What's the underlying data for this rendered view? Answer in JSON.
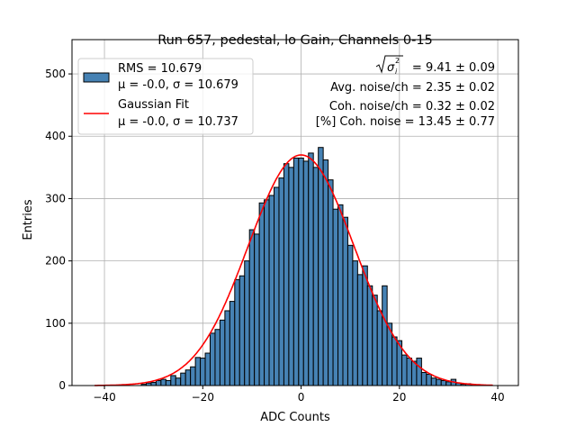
{
  "chart_data": {
    "type": "bar",
    "title": "Run 657, pedestal, lo Gain, Channels 0-15",
    "xlabel": "ADC Counts",
    "ylabel": "Entries",
    "xlim": [
      -46.6,
      44.2
    ],
    "ylim": [
      0,
      555
    ],
    "xticks": [
      -40,
      -20,
      0,
      20,
      40
    ],
    "yticks": [
      0,
      100,
      200,
      300,
      400,
      500
    ],
    "grid": true,
    "bin_width": 1,
    "x": [
      -32,
      -31,
      -30,
      -29,
      -28,
      -27,
      -26,
      -25,
      -24,
      -23,
      -22,
      -21,
      -20,
      -19,
      -18,
      -17,
      -16,
      -15,
      -14,
      -13,
      -12,
      -11,
      -10,
      -9,
      -8,
      -7,
      -6,
      -5,
      -4,
      -3,
      -2,
      -1,
      0,
      1,
      2,
      3,
      4,
      5,
      6,
      7,
      8,
      9,
      10,
      11,
      12,
      13,
      14,
      15,
      16,
      17,
      18,
      19,
      20,
      21,
      22,
      23,
      24,
      25,
      26,
      27,
      28,
      29,
      30,
      31,
      32,
      33,
      34,
      35
    ],
    "values": [
      2,
      4,
      5,
      8,
      10,
      8,
      16,
      12,
      20,
      25,
      30,
      45,
      44,
      52,
      84,
      90,
      105,
      120,
      135,
      170,
      176,
      200,
      250,
      243,
      293,
      298,
      305,
      318,
      333,
      356,
      350,
      365,
      365,
      360,
      373,
      350,
      382,
      362,
      330,
      283,
      290,
      270,
      225,
      200,
      178,
      192,
      160,
      145,
      120,
      160,
      100,
      78,
      72,
      49,
      44,
      39,
      44,
      21,
      18,
      12,
      10,
      8,
      6,
      10,
      4,
      2,
      3,
      1
    ],
    "bar_color": "#4682b4",
    "fit": {
      "mu": 0.0,
      "sigma": 10.737,
      "amplitude": 370,
      "range": [
        -42,
        39
      ],
      "color": "#ff0000"
    },
    "legend": {
      "placement": "top-left",
      "entries": [
        {
          "line1": "RMS = 10.679",
          "line2": "μ = -0.0, σ = 10.679"
        },
        {
          "line1": "Gaussian Fit",
          "line2": "μ = -0.0, σ = 10.737"
        }
      ]
    },
    "annotations": [
      "= 9.41 ± 0.09",
      "Avg. noise/ch = 2.35 ± 0.02",
      "Coh. noise/ch = 0.32 ± 0.02",
      "[%] Coh. noise = 13.45 ± 0.77"
    ]
  }
}
